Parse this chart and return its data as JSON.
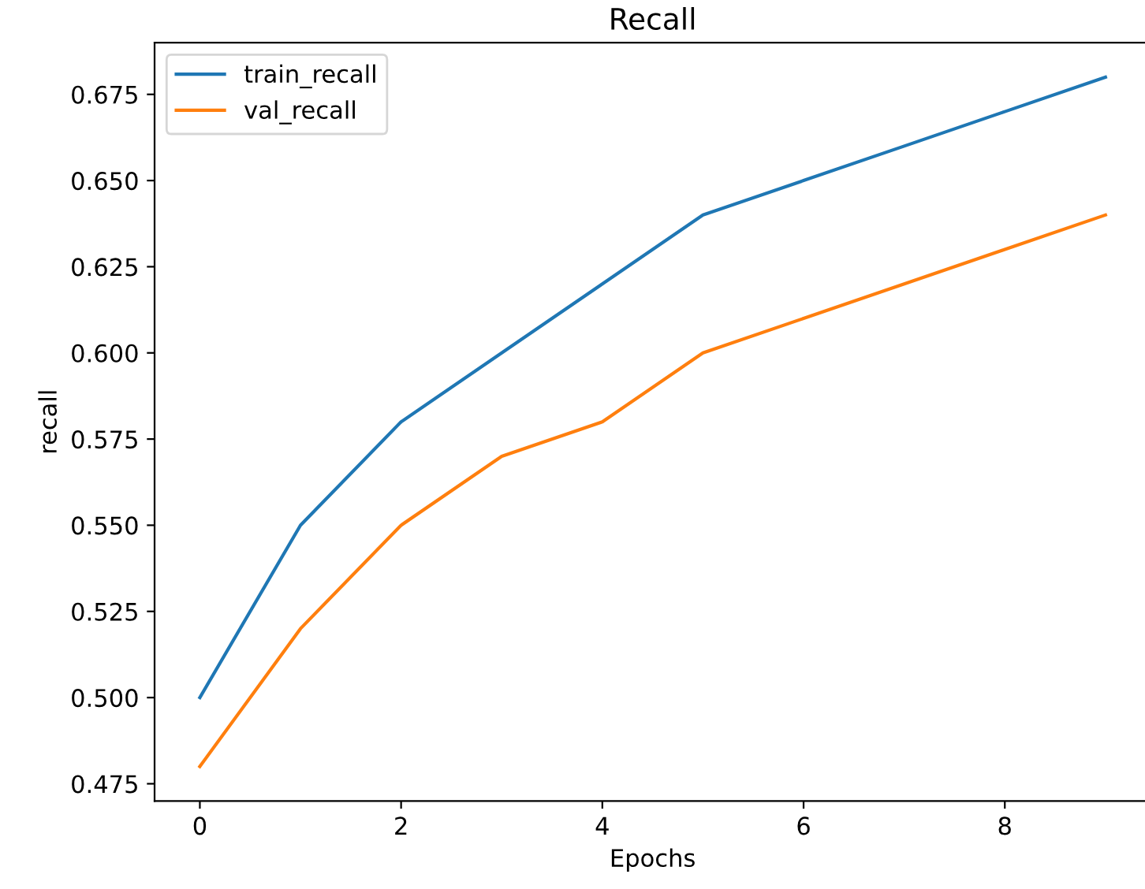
{
  "chart_data": {
    "type": "line",
    "title": "Recall",
    "xlabel": "Epochs",
    "ylabel": "recall",
    "x": [
      0,
      1,
      2,
      3,
      4,
      5,
      6,
      7,
      8,
      9
    ],
    "series": [
      {
        "name": "train_recall",
        "color": "#1f77b4",
        "values": [
          0.5,
          0.55,
          0.58,
          0.6,
          0.62,
          0.64,
          0.65,
          0.66,
          0.67,
          0.68
        ]
      },
      {
        "name": "val_recall",
        "color": "#ff7f0e",
        "values": [
          0.48,
          0.52,
          0.55,
          0.57,
          0.58,
          0.6,
          0.61,
          0.62,
          0.63,
          0.64
        ]
      }
    ],
    "xlim": [
      -0.45,
      9.45
    ],
    "xticks": [
      0,
      2,
      4,
      6,
      8
    ],
    "ylim": [
      0.47,
      0.69
    ],
    "yticks": [
      {
        "value": 0.475,
        "label": "0.475"
      },
      {
        "value": 0.5,
        "label": "0.500"
      },
      {
        "value": 0.525,
        "label": "0.525"
      },
      {
        "value": 0.55,
        "label": "0.550"
      },
      {
        "value": 0.575,
        "label": "0.575"
      },
      {
        "value": 0.6,
        "label": "0.600"
      },
      {
        "value": 0.625,
        "label": "0.625"
      },
      {
        "value": 0.65,
        "label": "0.650"
      },
      {
        "value": 0.675,
        "label": "0.675"
      }
    ],
    "legend": "top left",
    "grid": false,
    "line_style": "solid",
    "marker": "none"
  }
}
